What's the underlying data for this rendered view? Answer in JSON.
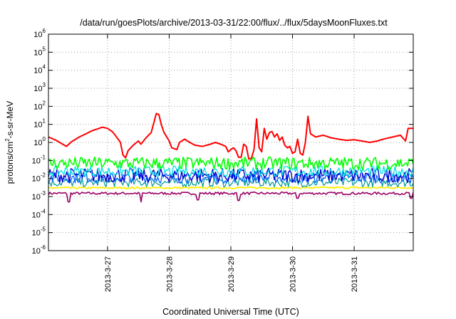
{
  "chart_data": {
    "type": "line",
    "title": "/data/run/goesPlots/archive/2013-03-31/22:00/flux/../flux/5daysMoonFluxes.txt",
    "xlabel": "Coordinated Universal Time (UTC)",
    "ylabel": {
      "base": "protons/cm",
      "sup": "2",
      "rest": "-s-sr-MeV"
    },
    "y_scale": "log",
    "ylim": [
      1e-06,
      1000000.0
    ],
    "y_ticks": [
      {
        "value": 1e-06,
        "base": "10",
        "exp": "-6"
      },
      {
        "value": 1e-05,
        "base": "10",
        "exp": "-5"
      },
      {
        "value": 0.0001,
        "base": "10",
        "exp": "-4"
      },
      {
        "value": 0.001,
        "base": "10",
        "exp": "-3"
      },
      {
        "value": 0.01,
        "base": "10",
        "exp": "-2"
      },
      {
        "value": 0.1,
        "base": "10",
        "exp": "-1"
      },
      {
        "value": 1.0,
        "base": "10",
        "exp": "0"
      },
      {
        "value": 10.0,
        "base": "10",
        "exp": "1"
      },
      {
        "value": 100.0,
        "base": "10",
        "exp": "2"
      },
      {
        "value": 1000.0,
        "base": "10",
        "exp": "3"
      },
      {
        "value": 10000.0,
        "base": "10",
        "exp": "4"
      },
      {
        "value": 100000.0,
        "base": "10",
        "exp": "5"
      },
      {
        "value": 1000000.0,
        "base": "10",
        "exp": "6"
      }
    ],
    "xlim": [
      "2013-03-26T01:00",
      "2013-03-31T23:00"
    ],
    "x_ticks": [
      {
        "value": "2013-03-27T00:00",
        "label": "2013-3-27"
      },
      {
        "value": "2013-03-28T00:00",
        "label": "2013-3-28"
      },
      {
        "value": "2013-03-29T00:00",
        "label": "2013-3-29"
      },
      {
        "value": "2013-03-30T00:00",
        "label": "2013-3-30"
      },
      {
        "value": "2013-03-31T00:00",
        "label": "2013-3-31"
      }
    ],
    "grid": true,
    "series": [
      {
        "color": "#ff0000",
        "width": 2,
        "jitter": 0,
        "points": [
          [
            "2013-03-26T01:00",
            2.0
          ],
          [
            "2013-03-26T04:00",
            1.3
          ],
          [
            "2013-03-26T08:00",
            0.6
          ],
          [
            "2013-03-26T10:00",
            1.1
          ],
          [
            "2013-03-26T13:00",
            2.0
          ],
          [
            "2013-03-26T16:00",
            3.2
          ],
          [
            "2013-03-26T18:00",
            4.5
          ],
          [
            "2013-03-26T20:00",
            5.5
          ],
          [
            "2013-03-26T22:00",
            7.0
          ],
          [
            "2013-03-27T00:00",
            6.0
          ],
          [
            "2013-03-27T02:00",
            3.8
          ],
          [
            "2013-03-27T04:00",
            1.6
          ],
          [
            "2013-03-27T05:00",
            1.0
          ],
          [
            "2013-03-27T06:00",
            0.2
          ],
          [
            "2013-03-27T07:00",
            0.14
          ],
          [
            "2013-03-27T08:00",
            0.35
          ],
          [
            "2013-03-27T10:00",
            0.7
          ],
          [
            "2013-03-27T12:00",
            1.2
          ],
          [
            "2013-03-27T13:00",
            0.8
          ],
          [
            "2013-03-27T15:00",
            1.8
          ],
          [
            "2013-03-27T17:00",
            3.5
          ],
          [
            "2013-03-27T18:00",
            12
          ],
          [
            "2013-03-27T19:00",
            40
          ],
          [
            "2013-03-27T20:00",
            35
          ],
          [
            "2013-03-27T21:00",
            9
          ],
          [
            "2013-03-27T22:00",
            3.5
          ],
          [
            "2013-03-28T00:00",
            1.2
          ],
          [
            "2013-03-28T01:00",
            0.5
          ],
          [
            "2013-03-28T03:00",
            0.4
          ],
          [
            "2013-03-28T04:00",
            1.0
          ],
          [
            "2013-03-28T06:00",
            1.5
          ],
          [
            "2013-03-28T08:00",
            1.0
          ],
          [
            "2013-03-28T10:00",
            0.7
          ],
          [
            "2013-03-28T13:00",
            0.6
          ],
          [
            "2013-03-28T16:00",
            0.8
          ],
          [
            "2013-03-28T18:00",
            1.0
          ],
          [
            "2013-03-28T20:00",
            0.8
          ],
          [
            "2013-03-28T22:00",
            0.6
          ],
          [
            "2013-03-28T23:00",
            0.3
          ],
          [
            "2013-03-29T00:00",
            0.4
          ],
          [
            "2013-03-29T01:00",
            0.5
          ],
          [
            "2013-03-29T02:00",
            0.35
          ],
          [
            "2013-03-29T03:00",
            0.15
          ],
          [
            "2013-03-29T04:00",
            0.15
          ],
          [
            "2013-03-29T05:00",
            0.8
          ],
          [
            "2013-03-29T06:00",
            0.6
          ],
          [
            "2013-03-29T07:00",
            0.12
          ],
          [
            "2013-03-29T08:00",
            0.13
          ],
          [
            "2013-03-29T09:00",
            0.4
          ],
          [
            "2013-03-29T10:00",
            20
          ],
          [
            "2013-03-29T11:00",
            0.5
          ],
          [
            "2013-03-29T12:00",
            0.3
          ],
          [
            "2013-03-29T13:00",
            6
          ],
          [
            "2013-03-29T14:00",
            1.5
          ],
          [
            "2013-03-29T15:00",
            3.5
          ],
          [
            "2013-03-29T16:00",
            4.0
          ],
          [
            "2013-03-29T17:00",
            2.0
          ],
          [
            "2013-03-29T18:00",
            3.0
          ],
          [
            "2013-03-29T19:00",
            1.3
          ],
          [
            "2013-03-29T20:00",
            2.0
          ],
          [
            "2013-03-29T21:00",
            0.7
          ],
          [
            "2013-03-29T22:00",
            0.5
          ],
          [
            "2013-03-29T23:00",
            0.6
          ],
          [
            "2013-03-30T00:00",
            0.25
          ],
          [
            "2013-03-30T01:00",
            0.3
          ],
          [
            "2013-03-30T02:00",
            1.5
          ],
          [
            "2013-03-30T03:00",
            0.25
          ],
          [
            "2013-03-30T04:00",
            0.2
          ],
          [
            "2013-03-30T05:00",
            1.0
          ],
          [
            "2013-03-30T06:00",
            28
          ],
          [
            "2013-03-30T07:00",
            3.0
          ],
          [
            "2013-03-30T09:00",
            2.0
          ],
          [
            "2013-03-30T12:00",
            2.5
          ],
          [
            "2013-03-30T15:00",
            1.8
          ],
          [
            "2013-03-30T18:00",
            1.5
          ],
          [
            "2013-03-30T21:00",
            1.3
          ],
          [
            "2013-03-31T00:00",
            1.4
          ],
          [
            "2013-03-31T03:00",
            1.2
          ],
          [
            "2013-03-31T06:00",
            1.0
          ],
          [
            "2013-03-31T09:00",
            1.2
          ],
          [
            "2013-03-31T12:00",
            1.6
          ],
          [
            "2013-03-31T15:00",
            2.0
          ],
          [
            "2013-03-31T18:00",
            2.5
          ],
          [
            "2013-03-31T20:00",
            1.2
          ],
          [
            "2013-03-31T21:00",
            6.0
          ],
          [
            "2013-03-31T23:00",
            6.0
          ]
        ]
      },
      {
        "color": "#00ff00",
        "width": 1.6,
        "jitter": 0.35,
        "points": [
          [
            "2013-03-26T01:00",
            0.07
          ],
          [
            "2013-03-31T23:00",
            0.07
          ]
        ]
      },
      {
        "color": "#00e0e0",
        "width": 1.3,
        "jitter": 0.3,
        "points": [
          [
            "2013-03-26T01:00",
            0.025
          ],
          [
            "2013-03-31T23:00",
            0.025
          ]
        ]
      },
      {
        "color": "#0000cc",
        "width": 1.4,
        "jitter": 0.4,
        "points": [
          [
            "2013-03-26T01:00",
            0.015
          ],
          [
            "2013-03-31T23:00",
            0.015
          ]
        ]
      },
      {
        "color": "#0066ff",
        "width": 1.3,
        "jitter": 0.3,
        "points": [
          [
            "2013-03-26T01:00",
            0.011
          ],
          [
            "2013-03-31T23:00",
            0.011
          ]
        ]
      },
      {
        "color": "#009999",
        "width": 1.2,
        "jitter": 0.25,
        "points": [
          [
            "2013-03-26T01:00",
            0.006
          ],
          [
            "2013-03-31T23:00",
            0.006
          ]
        ]
      },
      {
        "color": "#ffee00",
        "width": 1.8,
        "jitter": 0.05,
        "points": [
          [
            "2013-03-26T01:00",
            0.003
          ],
          [
            "2013-03-31T23:00",
            0.0031
          ]
        ]
      },
      {
        "color": "#990066",
        "width": 1.6,
        "jitter": 0.07,
        "points": [
          [
            "2013-03-26T01:00",
            0.0015
          ],
          [
            "2013-03-31T23:00",
            0.0015
          ]
        ],
        "dips": [
          [
            "2013-03-26T09:00",
            0.0005
          ],
          [
            "2013-03-27T13:00",
            0.0005
          ],
          [
            "2013-03-28T11:00",
            0.00065
          ],
          [
            "2013-03-29T03:00",
            0.0006
          ],
          [
            "2013-03-30T02:00",
            0.0008
          ],
          [
            "2013-03-31T22:00",
            0.0008
          ]
        ]
      }
    ]
  }
}
